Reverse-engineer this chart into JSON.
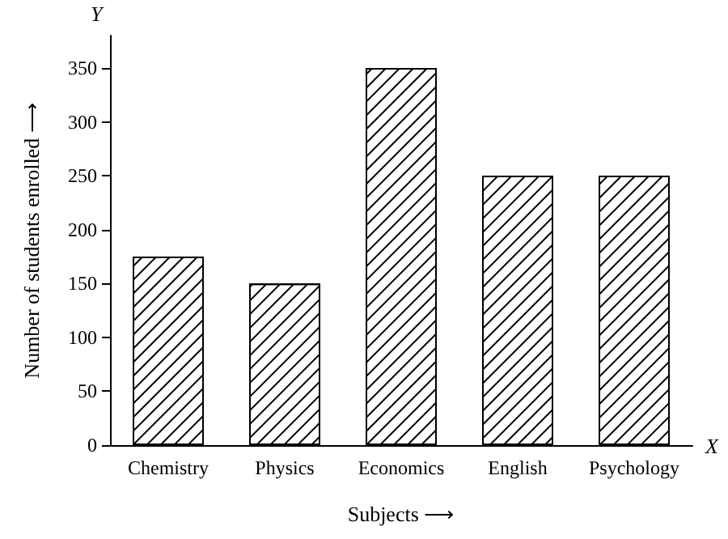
{
  "chart_data": {
    "type": "bar",
    "xlabel": "Subjects ⟶",
    "ylabel": "Number of students enrolled ⟶",
    "annotations": [
      "Y",
      "X"
    ],
    "categories": [
      "Chemistry",
      "Physics",
      "Economics",
      "English",
      "Psychology"
    ],
    "values": [
      175,
      150,
      350,
      250,
      250
    ],
    "color": "#000000",
    "ylim": [
      0,
      380
    ],
    "yticks": [
      0,
      50,
      100,
      150,
      200,
      250,
      300,
      350
    ],
    "grid": false
  }
}
